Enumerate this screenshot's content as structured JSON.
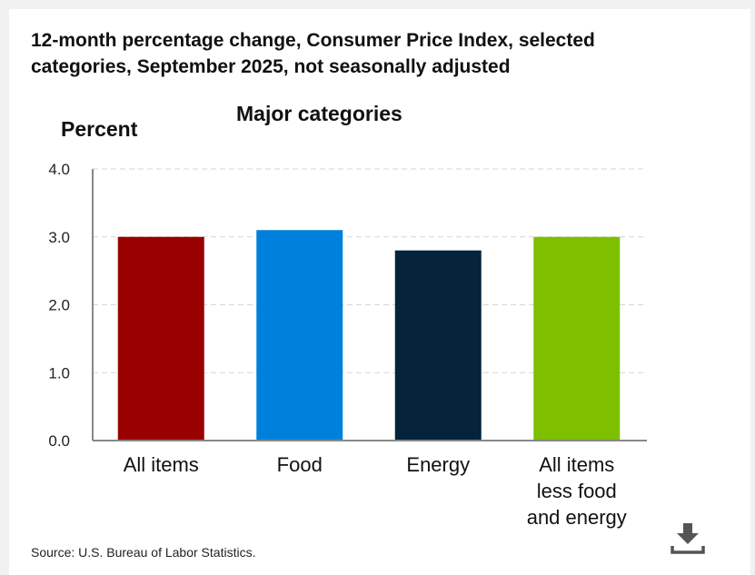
{
  "chart_data": {
    "type": "bar",
    "title": "12-month percentage change, Consumer Price Index, selected categories, September 2025, not seasonally adjusted",
    "subtitle": "Major categories",
    "ylabel": "Percent",
    "xlabel": "",
    "ylim": [
      0,
      4
    ],
    "yticks": [
      "0.0",
      "1.0",
      "2.0",
      "3.0",
      "4.0"
    ],
    "grid": true,
    "categories": [
      [
        "All items"
      ],
      [
        "Food"
      ],
      [
        "Energy"
      ],
      [
        "All items",
        "less food",
        "and energy"
      ]
    ],
    "values": [
      3.0,
      3.1,
      2.8,
      3.0
    ],
    "colors": [
      "#990000",
      "#0080dd",
      "#05233a",
      "#7ebf00"
    ]
  },
  "source": "Source: U.S. Bureau of Labor Statistics.",
  "icons": {
    "download": "download-icon"
  }
}
